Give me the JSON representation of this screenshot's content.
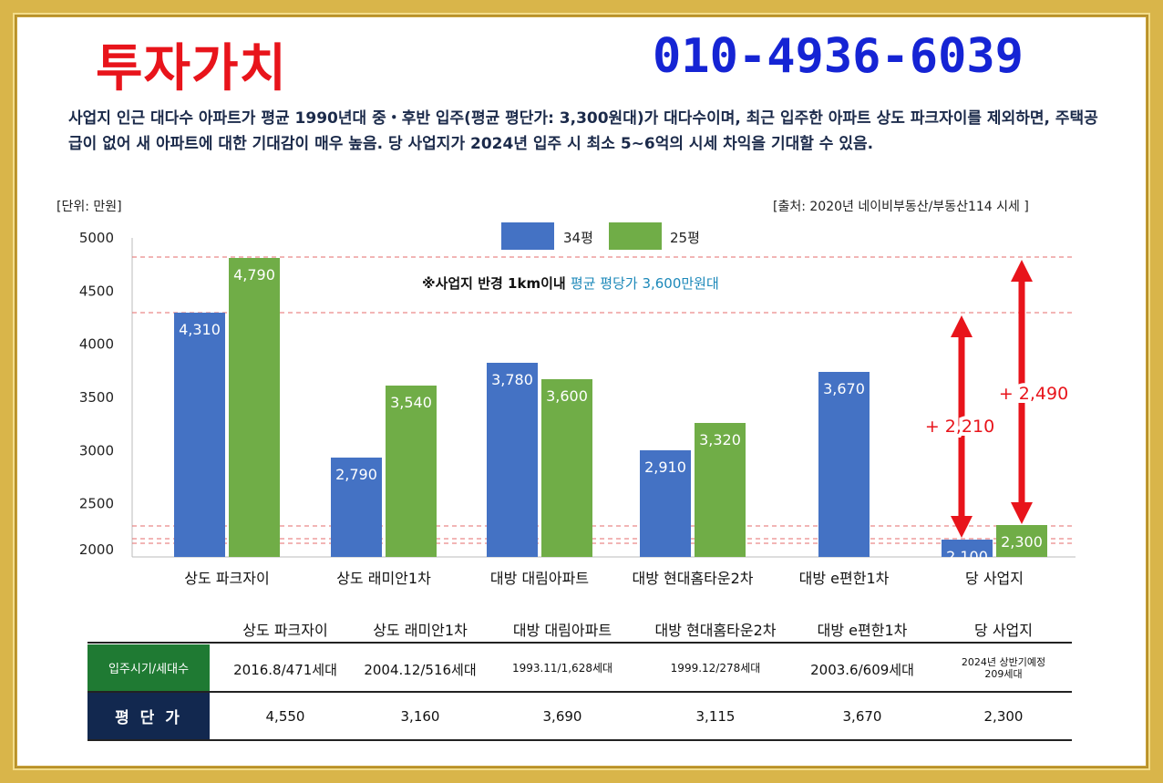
{
  "title": "투자가치",
  "phone": "010-4936-6039",
  "description": "사업지 인근 대다수 아파트가 평균 1990년대 중・후반 입주(평균 평단가: 3,300원대)가 대다수이며, 최근 입주한 아파트 상도 파크자이를 제외하면, 주택공급이 없어 새 아파트에 대한 기대감이 매우 높음. 당 사업지가 2024년 입주 시 최소 5~6억의 시세 차익을 기대할 수 있음.",
  "unit": "[단위: 만원]",
  "source": "[출처: 2020년 네이비부동산/부동산114 시세 ]",
  "note_prefix": "※사업지 반경 1km이내 ",
  "note_highlight": "평균 평당가 3,600만원대",
  "colors": {
    "blue": "#4472c4",
    "green": "#70ad47",
    "red": "#e8141b",
    "title_red": "#e8141b",
    "phone_blue": "#1524d4"
  },
  "chart_data": {
    "type": "bar",
    "categories": [
      "상도 파크자이",
      "상도 래미안1차",
      "대방 대림아파트",
      "대방 현대홈타운2차",
      "대방 e편한1차",
      "당 사업지"
    ],
    "series": [
      {
        "name": "34평",
        "values": [
          4310,
          2790,
          3780,
          2910,
          3670,
          2100
        ],
        "labels": [
          "4,310",
          "2,790",
          "3,780",
          "2,910",
          "3,670",
          "2,100"
        ]
      },
      {
        "name": "25평",
        "values": [
          4790,
          3540,
          3600,
          3320,
          null,
          2300
        ],
        "labels": [
          "4,790",
          "3,540",
          "3,600",
          "3,320",
          "",
          "2,300"
        ]
      }
    ],
    "yticks": [
      "5000",
      "4500",
      "4000",
      "3500",
      "3000",
      "2500",
      "2000"
    ],
    "ylim": [
      2000,
      5000
    ],
    "annotations": [
      {
        "text": "+ 2,210",
        "from": 2100,
        "to": 4310
      },
      {
        "text": "+ 2,490",
        "from": 2300,
        "to": 4790
      }
    ],
    "legend_position": "top"
  },
  "table": {
    "headers": [
      "상도 파크자이",
      "상도 래미안1차",
      "대방 대림아파트",
      "대방 현대홈타운2차",
      "대방 e편한1차",
      "당 사업지"
    ],
    "rows": [
      {
        "label": "입주시기/세대수",
        "cells": [
          "2016.8/471세대",
          "2004.12/516세대",
          "1993.11/1,628세대",
          "1999.12/278세대",
          "2003.6/609세대",
          "2024년 상반기예정\n209세대"
        ]
      },
      {
        "label": "평 단 가",
        "cells": [
          "4,550",
          "3,160",
          "3,690",
          "3,115",
          "3,670",
          "2,300"
        ]
      }
    ]
  }
}
